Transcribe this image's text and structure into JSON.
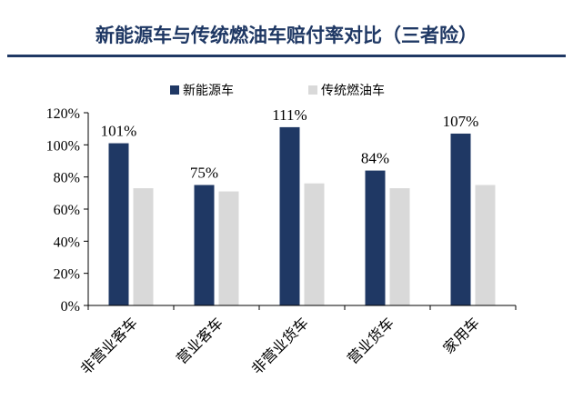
{
  "chart_data": {
    "type": "bar",
    "title": "新能源车与传统燃油车赔付率对比（三者险）",
    "categories": [
      "非营业客车",
      "营业客车",
      "非营业货车",
      "营业货车",
      "家用车"
    ],
    "series": [
      {
        "name": "新能源车",
        "values": [
          101,
          75,
          111,
          84,
          107
        ],
        "color": "#1f3864"
      },
      {
        "name": "传统燃油车",
        "values": [
          73,
          71,
          76,
          73,
          75
        ],
        "color": "#d9d9d9"
      }
    ],
    "data_labels": [
      "101%",
      "75%",
      "111%",
      "84%",
      "107%"
    ],
    "ylim": [
      0,
      120
    ],
    "y_ticks": [
      0,
      20,
      40,
      60,
      80,
      100,
      120
    ],
    "y_tick_labels": [
      "0%",
      "20%",
      "40%",
      "60%",
      "80%",
      "100%",
      "120%"
    ],
    "grid": false,
    "legend_position": "top-center",
    "title_color": "#1f3864",
    "rule_color": "#1f3864"
  }
}
